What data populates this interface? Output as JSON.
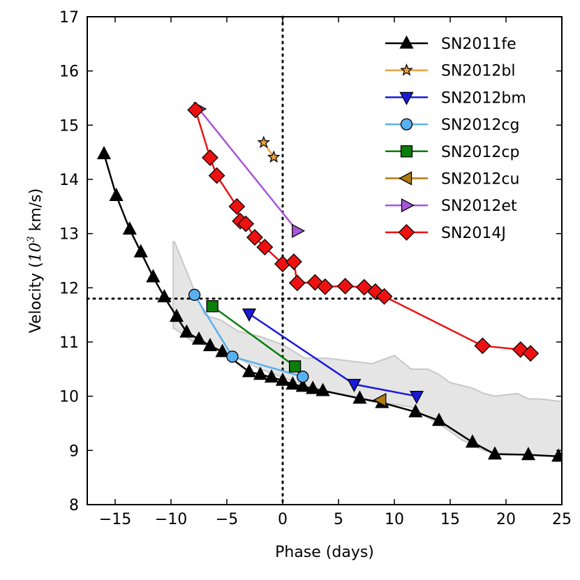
{
  "chart_data": {
    "type": "line",
    "xlabel": "Phase (days)",
    "ylabel_prefix": "Velocity (",
    "ylabel_base": "10",
    "ylabel_exp": "3",
    "ylabel_suffix": " km/s)",
    "xlim": [
      -17.5,
      25
    ],
    "ylim": [
      8,
      17
    ],
    "x_ticks": [
      -15,
      -10,
      -5,
      0,
      5,
      10,
      15,
      20,
      25
    ],
    "y_ticks": [
      8,
      9,
      10,
      11,
      12,
      13,
      14,
      15,
      16,
      17
    ],
    "reference_lines": {
      "x": 0,
      "y": 11.8
    },
    "legend_position": "top-right",
    "shaded_band": {
      "color": "#e5e5e5",
      "edge_color": "#c8c8c8",
      "x": [
        -9.8,
        -9.7,
        -8.0,
        -7.0,
        -5.5,
        -4.0,
        -2.0,
        0.0,
        2.0,
        4.0,
        6.0,
        8.0,
        10.0,
        11.5,
        13.0,
        14.0,
        15.0,
        16.0,
        17.0,
        18.0,
        19.0,
        21.0,
        22.0,
        23.0,
        25.0
      ],
      "upper": [
        12.85,
        12.85,
        12.0,
        11.5,
        11.4,
        11.2,
        11.1,
        10.95,
        10.7,
        10.7,
        10.65,
        10.6,
        10.75,
        10.5,
        10.5,
        10.4,
        10.25,
        10.2,
        10.15,
        10.05,
        10.0,
        10.05,
        9.95,
        9.95,
        9.9
      ],
      "lower": [
        11.25,
        11.25,
        11.0,
        10.95,
        10.85,
        10.7,
        10.5,
        10.35,
        10.2,
        10.1,
        10.0,
        9.9,
        9.85,
        9.8,
        9.6,
        9.5,
        9.35,
        9.2,
        9.1,
        9.0,
        8.95,
        8.93,
        8.92,
        8.9,
        8.9
      ]
    },
    "series": [
      {
        "name": "SN2011fe",
        "color": "#000000",
        "marker": "triangle-up",
        "fill": "#000000",
        "x": [
          -16.0,
          -14.9,
          -13.7,
          -12.7,
          -11.6,
          -10.6,
          -9.5,
          -8.6,
          -7.5,
          -6.5,
          -5.4,
          -3.0,
          -2.0,
          -1.0,
          0.0,
          0.9,
          1.8,
          2.7,
          3.6,
          6.9,
          8.9,
          11.9,
          14.0,
          17.0,
          19.0,
          22.0,
          24.7
        ],
        "y": [
          14.47,
          13.7,
          13.08,
          12.66,
          12.2,
          11.83,
          11.47,
          11.18,
          11.05,
          10.93,
          10.82,
          10.45,
          10.4,
          10.35,
          10.29,
          10.22,
          10.18,
          10.14,
          10.1,
          9.96,
          9.88,
          9.71,
          9.55,
          9.15,
          8.93,
          8.92,
          8.89
        ]
      },
      {
        "name": "SN2012bl",
        "color": "#f0a040",
        "marker": "star",
        "fill": "#f0a040",
        "x": [
          -1.7,
          -0.8
        ],
        "y": [
          14.68,
          14.41
        ]
      },
      {
        "name": "SN2012bm",
        "color": "#1a1adc",
        "marker": "triangle-down",
        "fill": "#1a1adc",
        "x": [
          -3.0,
          6.4,
          12.0
        ],
        "y": [
          11.52,
          10.22,
          10.0
        ]
      },
      {
        "name": "SN2012cg",
        "color": "#5ab0ee",
        "marker": "circle",
        "fill": "#5ab0ee",
        "x": [
          -7.9,
          -4.5,
          1.8
        ],
        "y": [
          11.87,
          10.73,
          10.36
        ]
      },
      {
        "name": "SN2012cp",
        "color": "#0a7d0a",
        "marker": "square",
        "fill": "#0a7d0a",
        "x": [
          -6.3,
          1.1
        ],
        "y": [
          11.66,
          10.55
        ]
      },
      {
        "name": "SN2012cu",
        "color": "#b07a10",
        "marker": "triangle-left",
        "fill": "#b07a10",
        "x": [
          8.8
        ],
        "y": [
          9.93
        ]
      },
      {
        "name": "SN2012et",
        "color": "#a855d8",
        "marker": "triangle-right",
        "fill": "#a855d8",
        "x": [
          -7.5,
          1.3
        ],
        "y": [
          15.3,
          13.05
        ]
      },
      {
        "name": "SN2014J",
        "color": "#ee1111",
        "marker": "diamond",
        "fill": "#ee1111",
        "x": [
          -7.8,
          -6.5,
          -5.9,
          -4.1,
          -3.8,
          -3.3,
          -2.5,
          -1.6,
          0.0,
          1.0,
          1.3,
          2.9,
          3.8,
          5.6,
          7.3,
          8.3,
          9.1,
          17.9,
          21.3,
          22.2
        ],
        "y": [
          15.28,
          14.4,
          14.07,
          13.5,
          13.23,
          13.18,
          12.93,
          12.75,
          12.44,
          12.48,
          12.09,
          12.1,
          12.02,
          12.03,
          12.01,
          11.93,
          11.84,
          10.93,
          10.86,
          10.79
        ]
      }
    ]
  }
}
